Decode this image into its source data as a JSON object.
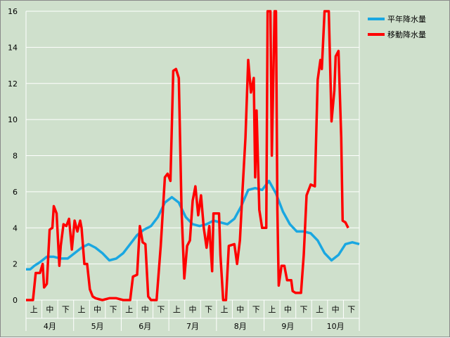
{
  "chart_data": {
    "type": "line",
    "title": "",
    "xlabel": "",
    "ylabel": "",
    "ylim": [
      0,
      16
    ],
    "yticks": [
      0,
      2,
      4,
      6,
      8,
      10,
      12,
      14,
      16
    ],
    "grid": "horizontal",
    "legend_placement": "top-right",
    "x_months": [
      "4月",
      "5月",
      "6月",
      "7月",
      "8月",
      "9月",
      "10月"
    ],
    "x_periods": [
      "上",
      "中",
      "下"
    ],
    "x_unit_count": 21,
    "series": [
      {
        "name": "平年降水量",
        "color": "#1aa7e1",
        "points": [
          [
            0,
            1.7
          ],
          [
            0.3,
            1.7
          ],
          [
            0.6,
            1.9
          ],
          [
            1.0,
            2.1
          ],
          [
            1.5,
            2.4
          ],
          [
            2.0,
            2.4
          ],
          [
            2.5,
            2.3
          ],
          [
            3.0,
            2.3
          ],
          [
            3.5,
            2.6
          ],
          [
            4.0,
            2.9
          ],
          [
            4.5,
            3.1
          ],
          [
            5.0,
            2.9
          ],
          [
            5.5,
            2.6
          ],
          [
            6.0,
            2.2
          ],
          [
            6.5,
            2.3
          ],
          [
            7.0,
            2.6
          ],
          [
            7.5,
            3.1
          ],
          [
            8.0,
            3.6
          ],
          [
            8.5,
            3.9
          ],
          [
            9.0,
            4.1
          ],
          [
            9.5,
            4.6
          ],
          [
            10.0,
            5.4
          ],
          [
            10.5,
            5.7
          ],
          [
            11.0,
            5.4
          ],
          [
            11.5,
            4.6
          ],
          [
            12.0,
            4.2
          ],
          [
            12.5,
            4.1
          ],
          [
            13.0,
            4.2
          ],
          [
            13.5,
            4.4
          ],
          [
            14.0,
            4.3
          ],
          [
            14.5,
            4.2
          ],
          [
            15.0,
            4.5
          ],
          [
            15.5,
            5.2
          ],
          [
            16.0,
            6.1
          ],
          [
            16.5,
            6.2
          ],
          [
            17.0,
            6.1
          ],
          [
            17.5,
            6.6
          ],
          [
            18.0,
            5.9
          ],
          [
            18.5,
            4.9
          ],
          [
            19.0,
            4.2
          ],
          [
            19.5,
            3.8
          ],
          [
            20.0,
            3.8
          ],
          [
            20.5,
            3.7
          ],
          [
            21.0,
            3.3
          ],
          [
            21.5,
            2.6
          ],
          [
            22.0,
            2.2
          ],
          [
            22.5,
            2.5
          ],
          [
            23.0,
            3.1
          ],
          [
            23.5,
            3.2
          ],
          [
            24.0,
            3.1
          ]
        ]
      },
      {
        "name": "移動降水量",
        "color": "#ff0000",
        "points": [
          [
            0,
            0
          ],
          [
            0.5,
            0
          ],
          [
            0.7,
            1.5
          ],
          [
            1.0,
            1.5
          ],
          [
            1.2,
            2.0
          ],
          [
            1.3,
            0.7
          ],
          [
            1.5,
            0.9
          ],
          [
            1.7,
            3.9
          ],
          [
            1.9,
            4.0
          ],
          [
            2.0,
            5.2
          ],
          [
            2.2,
            4.8
          ],
          [
            2.4,
            1.9
          ],
          [
            2.5,
            3.0
          ],
          [
            2.7,
            4.2
          ],
          [
            2.9,
            4.1
          ],
          [
            3.1,
            4.5
          ],
          [
            3.3,
            2.8
          ],
          [
            3.5,
            4.4
          ],
          [
            3.7,
            3.8
          ],
          [
            3.9,
            4.4
          ],
          [
            4.0,
            4.0
          ],
          [
            4.2,
            2.0
          ],
          [
            4.4,
            2.0
          ],
          [
            4.6,
            0.6
          ],
          [
            4.8,
            0.2
          ],
          [
            5.0,
            0.1
          ],
          [
            5.5,
            0
          ],
          [
            6.0,
            0.1
          ],
          [
            6.5,
            0.1
          ],
          [
            7.0,
            0
          ],
          [
            7.5,
            0
          ],
          [
            7.7,
            1.3
          ],
          [
            8.0,
            1.4
          ],
          [
            8.2,
            4.1
          ],
          [
            8.4,
            3.2
          ],
          [
            8.6,
            3.1
          ],
          [
            8.8,
            0.2
          ],
          [
            9.0,
            0
          ],
          [
            9.4,
            0
          ],
          [
            9.7,
            3.0
          ],
          [
            10.0,
            6.8
          ],
          [
            10.2,
            7.0
          ],
          [
            10.4,
            6.6
          ],
          [
            10.6,
            12.7
          ],
          [
            10.8,
            12.8
          ],
          [
            11.0,
            12.3
          ],
          [
            11.2,
            5.0
          ],
          [
            11.4,
            1.2
          ],
          [
            11.6,
            3.0
          ],
          [
            11.8,
            3.3
          ],
          [
            12.0,
            5.5
          ],
          [
            12.2,
            6.3
          ],
          [
            12.4,
            4.7
          ],
          [
            12.6,
            5.8
          ],
          [
            12.8,
            4.0
          ],
          [
            13.0,
            2.9
          ],
          [
            13.2,
            4.1
          ],
          [
            13.4,
            1.6
          ],
          [
            13.5,
            4.8
          ],
          [
            13.9,
            4.8
          ],
          [
            14.0,
            2.5
          ],
          [
            14.2,
            0
          ],
          [
            14.4,
            0
          ],
          [
            14.6,
            3.0
          ],
          [
            15.0,
            3.1
          ],
          [
            15.2,
            2.0
          ],
          [
            15.4,
            3.3
          ],
          [
            15.6,
            6.2
          ],
          [
            15.8,
            9.0
          ],
          [
            16.0,
            13.3
          ],
          [
            16.2,
            11.5
          ],
          [
            16.4,
            12.3
          ],
          [
            16.5,
            6.8
          ],
          [
            16.6,
            10.5
          ],
          [
            16.8,
            5.0
          ],
          [
            17.0,
            4.0
          ],
          [
            17.3,
            4.0
          ],
          [
            17.4,
            16.0
          ],
          [
            17.6,
            16.0
          ],
          [
            17.7,
            8.0
          ],
          [
            17.9,
            16.0
          ],
          [
            18.0,
            16.0
          ],
          [
            18.1,
            5.0
          ],
          [
            18.2,
            0.8
          ],
          [
            18.4,
            1.9
          ],
          [
            18.6,
            1.9
          ],
          [
            18.8,
            1.1
          ],
          [
            19.1,
            1.1
          ],
          [
            19.2,
            0.5
          ],
          [
            19.4,
            0.4
          ],
          [
            19.8,
            0.4
          ],
          [
            20.0,
            2.5
          ],
          [
            20.2,
            5.8
          ],
          [
            20.5,
            6.4
          ],
          [
            20.8,
            6.3
          ],
          [
            21.0,
            12.2
          ],
          [
            21.2,
            13.3
          ],
          [
            21.3,
            12.8
          ],
          [
            21.5,
            16.0
          ],
          [
            21.8,
            16.0
          ],
          [
            22.0,
            9.9
          ],
          [
            22.2,
            11.6
          ],
          [
            22.3,
            13.5
          ],
          [
            22.5,
            13.8
          ],
          [
            22.7,
            9.0
          ],
          [
            22.8,
            4.4
          ],
          [
            23.0,
            4.3
          ],
          [
            23.2,
            4.0
          ]
        ]
      }
    ]
  }
}
